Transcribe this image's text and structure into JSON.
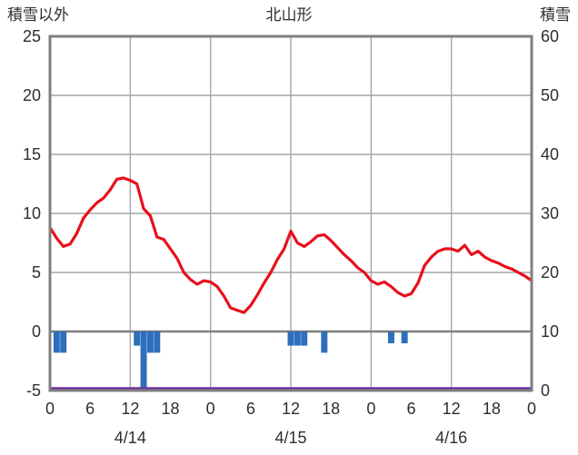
{
  "header": {
    "left_axis_title": "積雪以外",
    "station_title": "北山形",
    "right_axis_title": "積雪"
  },
  "chart_data": {
    "type": "mixed",
    "title": "北山形",
    "left_axis": {
      "label": "積雪以外",
      "min": -5,
      "max": 25,
      "ticks": [
        25,
        20,
        15,
        10,
        5,
        0,
        -5
      ],
      "gridlines": [
        20,
        15,
        10,
        5
      ],
      "zero_line_value": 0
    },
    "right_axis": {
      "label": "積雪",
      "min": 0,
      "max": 60,
      "ticks": [
        60,
        50,
        40,
        30,
        20,
        10,
        0
      ]
    },
    "x_axis": {
      "hours_total": 72,
      "tick_hours": [
        0,
        6,
        12,
        18,
        24,
        30,
        36,
        42,
        48,
        54,
        60,
        66,
        72
      ],
      "tick_labels": [
        "0",
        "6",
        "12",
        "18",
        "0",
        "6",
        "12",
        "18",
        "0",
        "6",
        "12",
        "18",
        "0"
      ],
      "gridline_hours": [
        12,
        24,
        36,
        48,
        60
      ],
      "day_labels": [
        {
          "label": "4/14",
          "hour": 12
        },
        {
          "label": "4/15",
          "hour": 36
        },
        {
          "label": "4/16",
          "hour": 60
        }
      ]
    },
    "series": [
      {
        "name": "temperature",
        "type": "line",
        "axis": "left",
        "color": "#e8101c",
        "x_step_hours": 1,
        "values": [
          8.8,
          7.9,
          7.2,
          7.4,
          8.3,
          9.6,
          10.3,
          10.9,
          11.3,
          12.0,
          12.9,
          13.0,
          12.8,
          12.5,
          10.4,
          9.8,
          8.0,
          7.8,
          7.0,
          6.2,
          5.0,
          4.4,
          4.0,
          4.3,
          4.2,
          3.8,
          3.0,
          2.0,
          1.8,
          1.6,
          2.2,
          3.1,
          4.1,
          5.0,
          6.1,
          7.0,
          8.5,
          7.5,
          7.2,
          7.6,
          8.1,
          8.2,
          7.7,
          7.1,
          6.5,
          6.0,
          5.4,
          5.0,
          4.3,
          4.0,
          4.2,
          3.8,
          3.3,
          3.0,
          3.2,
          4.1,
          5.6,
          6.3,
          6.8,
          7.0,
          7.0,
          6.8,
          7.3,
          6.5,
          6.8,
          6.3,
          6.0,
          5.8,
          5.5,
          5.3,
          5.0,
          4.7,
          4.3
        ]
      },
      {
        "name": "precipitation",
        "type": "bar",
        "axis": "left",
        "direction": "down-from-zero",
        "color": "#2e6fbb",
        "bars": [
          {
            "hour": 1,
            "value": 1.8
          },
          {
            "hour": 2,
            "value": 1.8
          },
          {
            "hour": 13,
            "value": 1.2
          },
          {
            "hour": 14,
            "value": 5.0
          },
          {
            "hour": 15,
            "value": 1.8
          },
          {
            "hour": 16,
            "value": 1.8
          },
          {
            "hour": 36,
            "value": 1.2
          },
          {
            "hour": 37,
            "value": 1.2
          },
          {
            "hour": 38,
            "value": 1.2
          },
          {
            "hour": 41,
            "value": 1.8
          },
          {
            "hour": 51,
            "value": 1.0
          },
          {
            "hour": 53,
            "value": 1.0
          }
        ]
      },
      {
        "name": "snow_depth",
        "type": "line",
        "axis": "right",
        "color": "#7030a0",
        "constant_value": 0
      }
    ],
    "colors": {
      "grid": "#a6a6a6",
      "border": "#7f7f7f",
      "zero_line": "#7f7f7f",
      "text": "#2e2e2e",
      "background": "#ffffff"
    }
  }
}
